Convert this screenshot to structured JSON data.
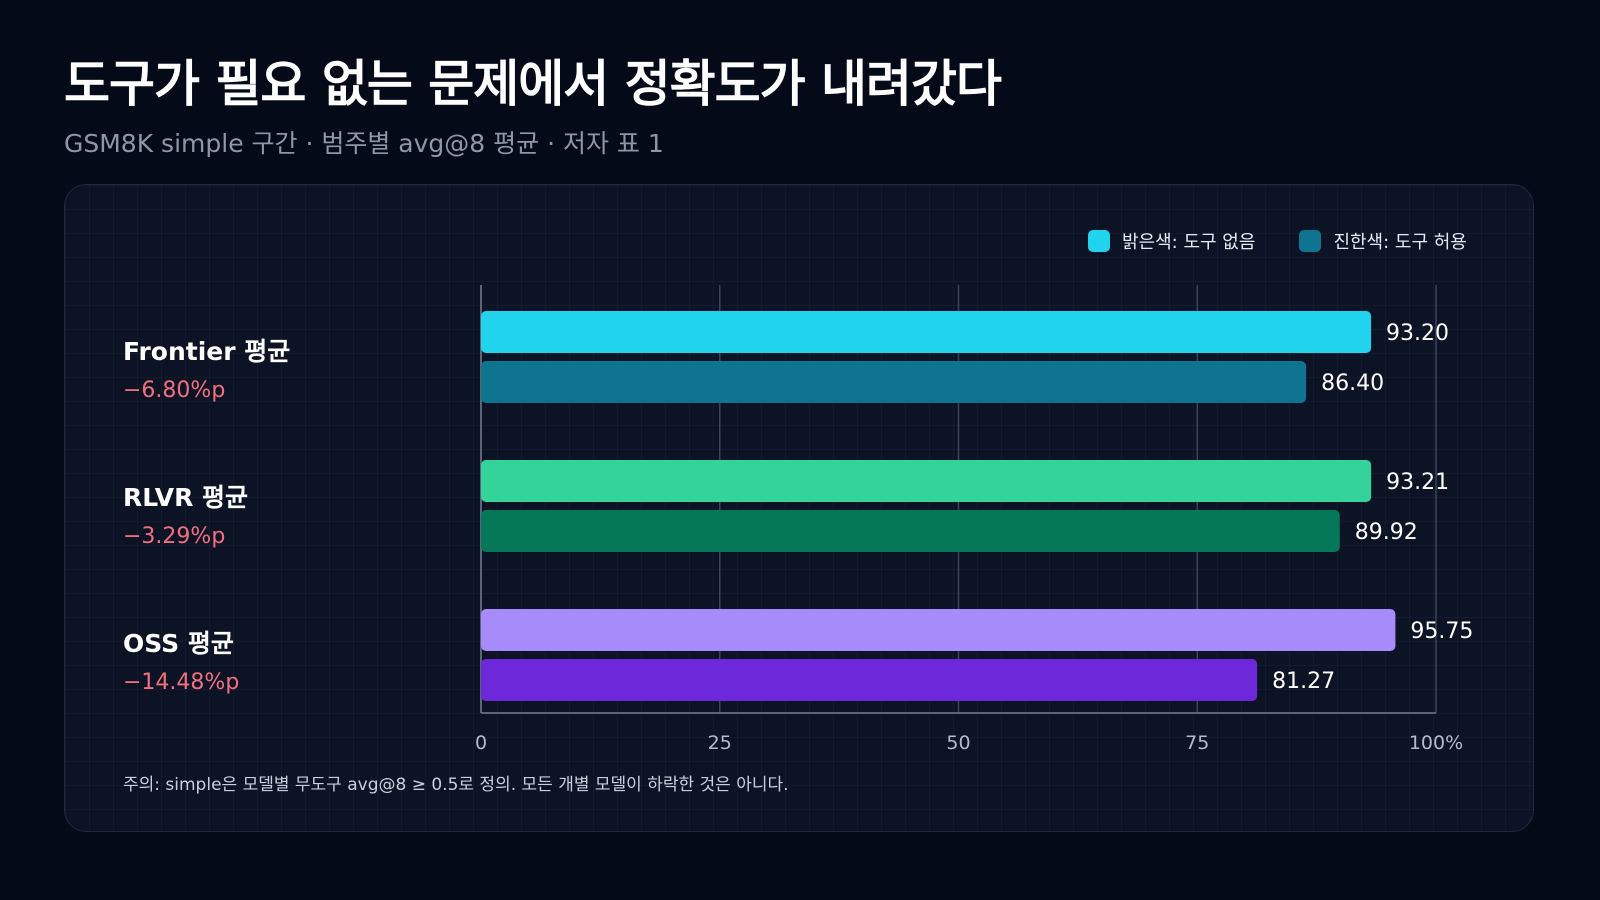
{
  "title": "도구가 필요 없는 문제에서 정확도가 내려갔다",
  "subtitle": "GSM8K simple 구간 · 범주별 avg@8 평균 · 저자 표 1",
  "legend": {
    "light": "밝은색: 도구 없음",
    "dark": "진한색: 도구 허용",
    "light_color": "#22d3ee",
    "dark_color": "#0e7490"
  },
  "note": "주의: simple은 모델별 무도구 avg@8 ≥ 0.5로 정의. 모든 개별 모델이 하락한 것은 아니다.",
  "chart_data": {
    "type": "bar",
    "orientation": "horizontal",
    "categories": [
      "Frontier 평균",
      "RLVR 평균",
      "OSS 평균"
    ],
    "deltas": [
      "−6.80%p",
      "−3.29%p",
      "−14.48%p"
    ],
    "series": [
      {
        "name": "밝은색: 도구 없음",
        "values": [
          93.2,
          93.21,
          95.75
        ],
        "labels": [
          "93.20",
          "93.21",
          "95.75"
        ]
      },
      {
        "name": "진한색: 도구 허용",
        "values": [
          86.4,
          89.92,
          81.27
        ],
        "labels": [
          "86.40",
          "89.92",
          "81.27"
        ]
      }
    ],
    "colors": [
      [
        "#22d3ee",
        "#0e7490"
      ],
      [
        "#34d399",
        "#047857"
      ],
      [
        "#a78bfa",
        "#6d28d9"
      ]
    ],
    "xlim": [
      0,
      100
    ],
    "xticks": [
      "0",
      "25",
      "50",
      "75",
      "100%"
    ],
    "grid": true,
    "legend_position": "top-right"
  }
}
